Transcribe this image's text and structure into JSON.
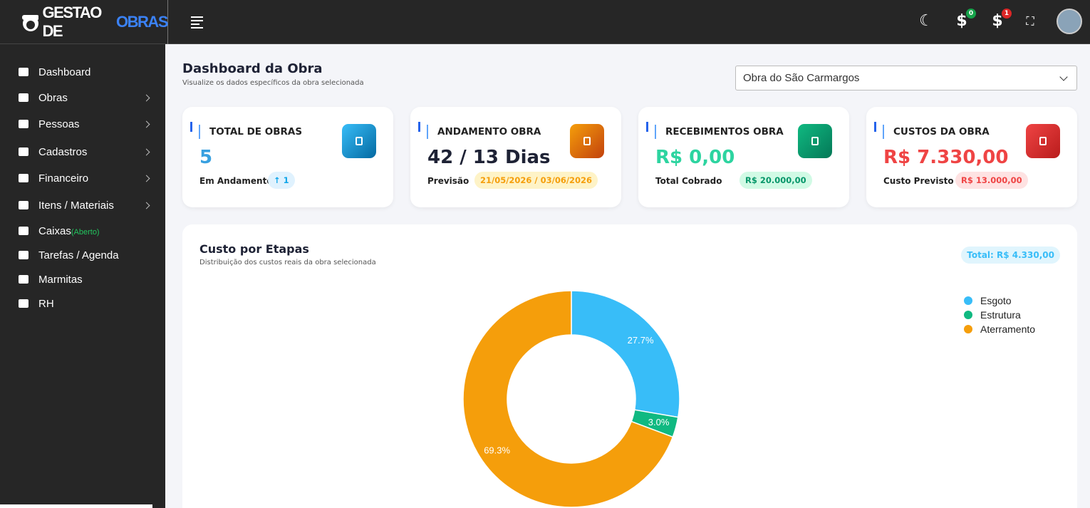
{
  "header": {
    "logo": [
      "GESTAO DE",
      "OBRAS"
    ],
    "badges": [
      "0",
      "1"
    ]
  },
  "sidebar": {
    "items": [
      {
        "label": "Dashboard",
        "submenu": false
      },
      {
        "label": "Obras",
        "submenu": true
      },
      {
        "label": "Pessoas",
        "submenu": true
      },
      {
        "label": "Cadastros",
        "submenu": true
      },
      {
        "label": "Financeiro",
        "submenu": true
      },
      {
        "label": "Itens / Materiais",
        "submenu": true
      },
      {
        "label": "Caixas",
        "status": "(Aberto)",
        "submenu": false
      },
      {
        "label": "Tarefas / Agenda",
        "submenu": false
      },
      {
        "label": "Marmitas",
        "submenu": false
      },
      {
        "label": "RH",
        "submenu": false
      }
    ]
  },
  "page": {
    "title": "Dashboard da Obra",
    "subtitle": "Visualize os dados específicos da obra selecionada",
    "selected_obra": "Obra do São Carmargos"
  },
  "cards": [
    {
      "title": "TOTAL DE OBRAS",
      "value": "5",
      "label": "Em Andamento",
      "badge": "1"
    },
    {
      "title": "ANDAMENTO OBRA",
      "value": "42 / 13 Dias",
      "label": "Previsão",
      "badge": "21/05/2026 / 03/06/2026"
    },
    {
      "title": "RECEBIMENTOS OBRA",
      "value": "R$ 0,00",
      "label": "Total Cobrado",
      "badge": "R$ 20.000,00"
    },
    {
      "title": "CUSTOS DA OBRA",
      "value": "R$ 7.330,00",
      "label": "Custo Previsto",
      "badge": "R$ 13.000,00"
    }
  ],
  "chart_data": {
    "type": "pie",
    "donut": true,
    "title": "Custo por Etapas",
    "subtitle": "Distribuição dos custos reais da obra selecionada",
    "total": "Total: R$ 4.330,00",
    "categories": [
      "Esgoto",
      "Estrutura",
      "Aterramento"
    ],
    "values": [
      27.7,
      3.0,
      69.3
    ],
    "value_labels": [
      "27.7%",
      "3.0%",
      "69.3%"
    ],
    "colors": [
      "#38bdf8",
      "#10b981",
      "#f59e0b"
    ]
  }
}
